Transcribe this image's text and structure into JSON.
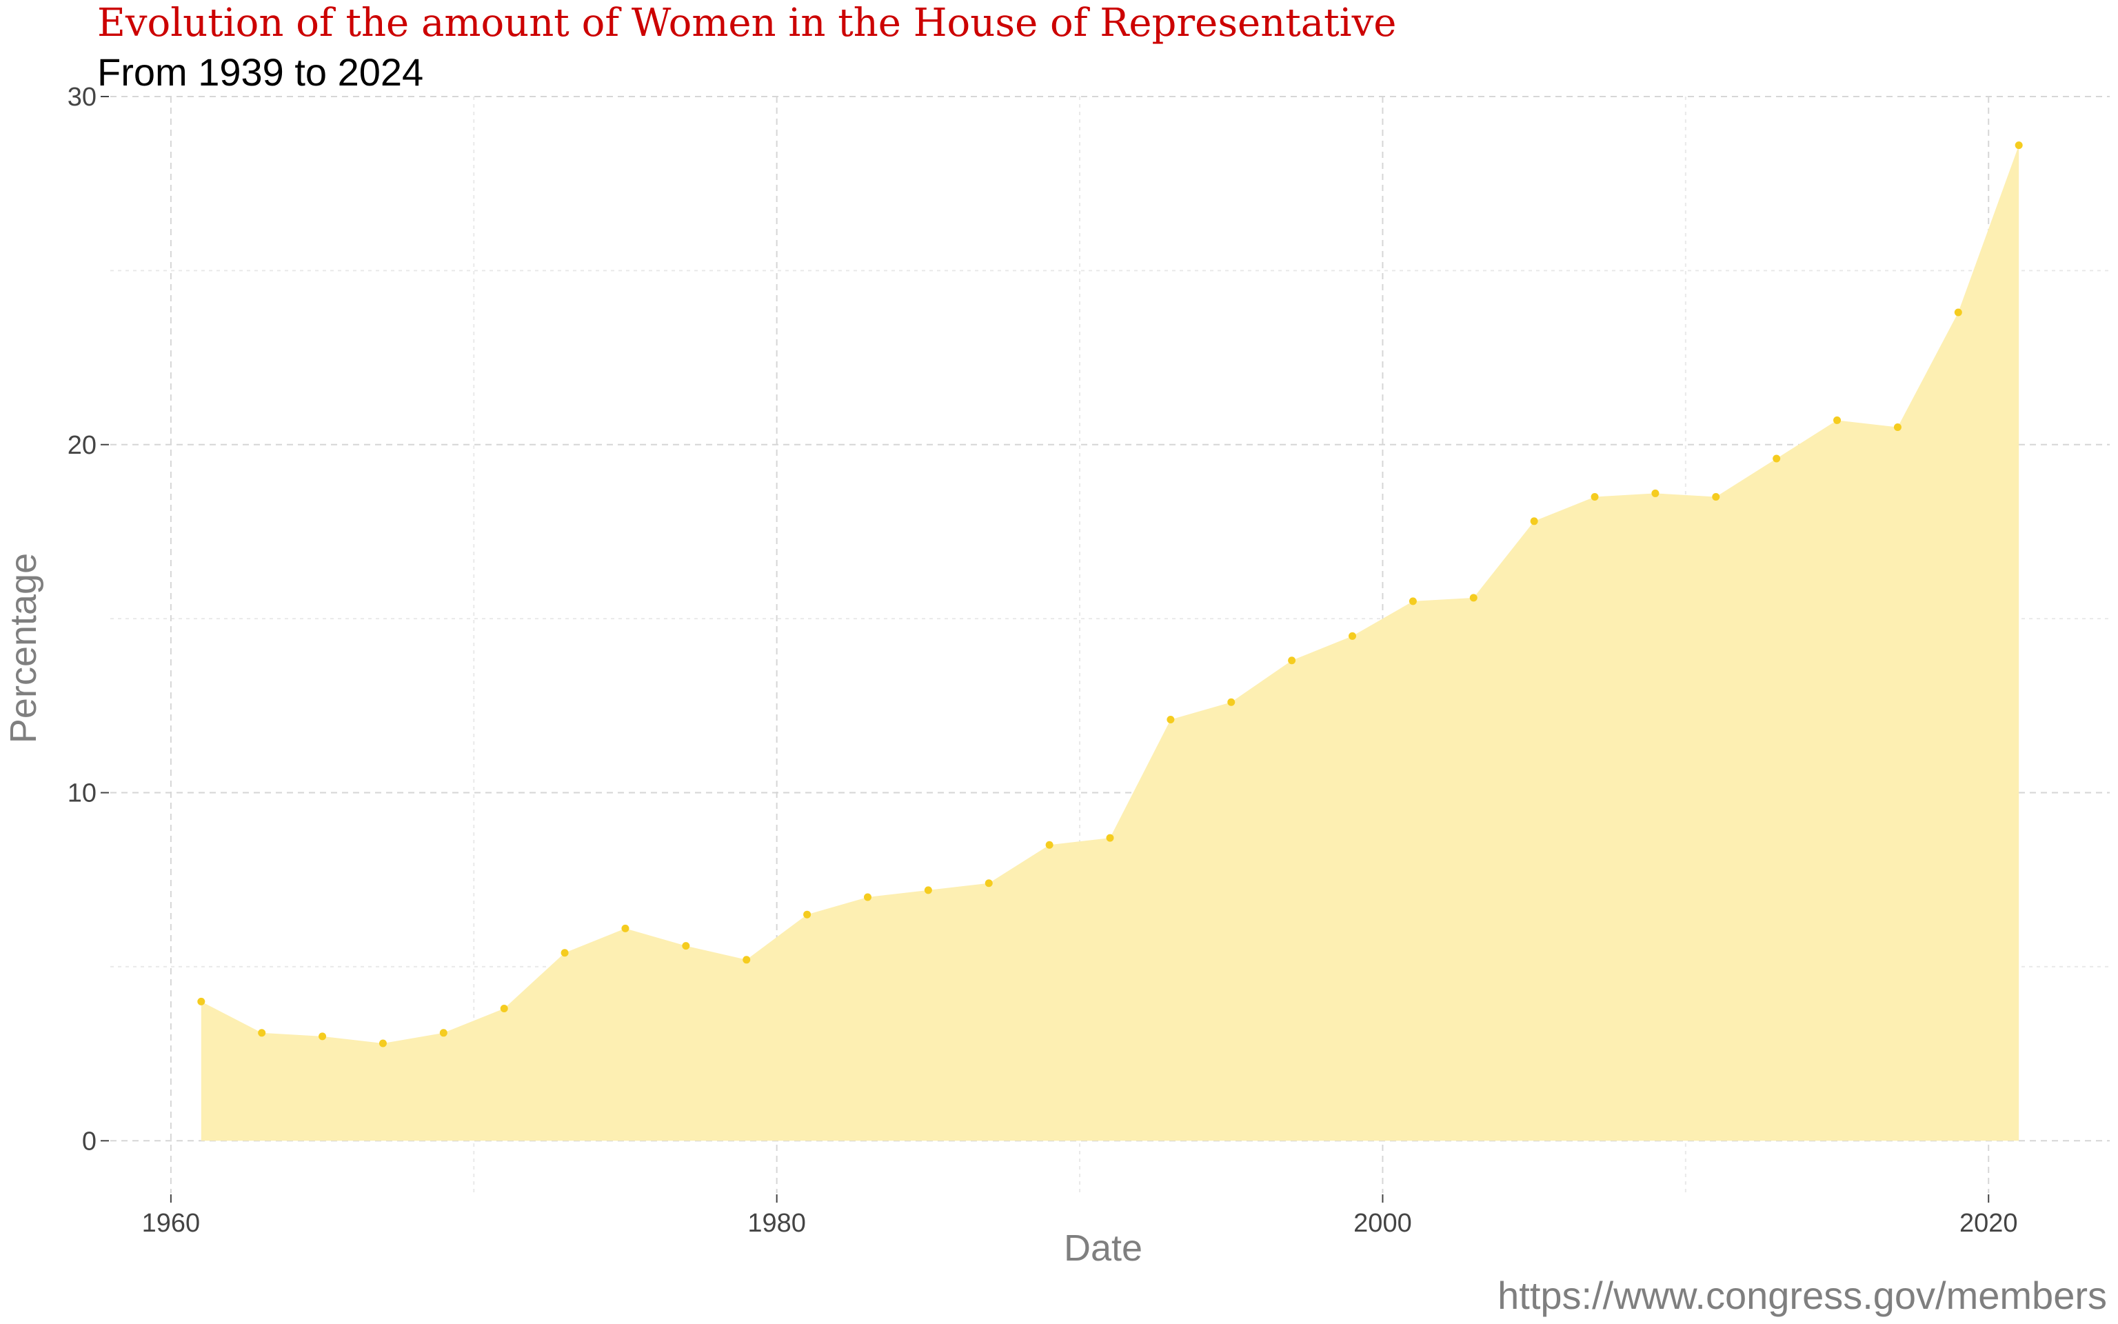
{
  "chart_data": {
    "type": "area",
    "title": "Evolution of the amount of Women in the House of Representative",
    "subtitle": "From 1939 to 2024",
    "xlabel": "Date",
    "ylabel": "Percentage",
    "caption": "https://www.congress.gov/members",
    "xlim": [
      1958,
      2024
    ],
    "ylim": [
      -1.5,
      30
    ],
    "x_ticks": [
      1960,
      1980,
      2000,
      2020
    ],
    "y_ticks": [
      0,
      10,
      20,
      30
    ],
    "x_minor": [
      1970,
      1990,
      2010
    ],
    "y_minor": [
      5,
      15,
      25
    ],
    "grid": true,
    "colors": {
      "area_fill": "#fdefb2",
      "points": "#f5cc1f",
      "title": "#cc0000"
    },
    "x": [
      1961,
      1963,
      1965,
      1967,
      1969,
      1971,
      1973,
      1975,
      1977,
      1979,
      1981,
      1983,
      1985,
      1987,
      1989,
      1991,
      1993,
      1995,
      1997,
      1999,
      2001,
      2003,
      2005,
      2007,
      2009,
      2011,
      2013,
      2015,
      2017,
      2019,
      2021
    ],
    "y": [
      4.0,
      3.1,
      3.0,
      2.8,
      3.1,
      3.8,
      5.4,
      6.1,
      5.6,
      5.2,
      6.5,
      7.0,
      7.2,
      7.4,
      8.5,
      8.7,
      12.1,
      12.6,
      13.8,
      14.5,
      15.5,
      15.6,
      17.8,
      18.5,
      18.6,
      18.5,
      19.6,
      20.7,
      20.5,
      23.8,
      28.6
    ]
  }
}
